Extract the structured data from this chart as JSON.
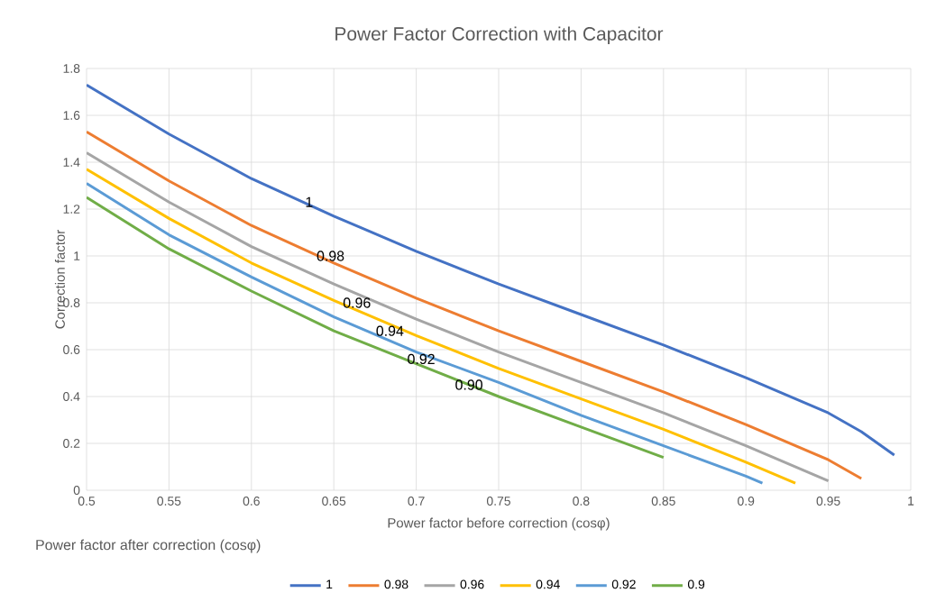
{
  "chart_data": {
    "type": "line",
    "title": "Power Factor Correction with Capacitor",
    "xlabel": "Power factor before correction  (cosφ)",
    "ylabel": "Correction  factor",
    "legend_title": "Power factor after correction (cosφ)",
    "series": [
      {
        "name": "1",
        "color": "#4472c4",
        "x": [
          0.5,
          0.55,
          0.6,
          0.65,
          0.7,
          0.75,
          0.8,
          0.85,
          0.9,
          0.95,
          0.97,
          0.99
        ],
        "values": [
          1.73,
          1.52,
          1.33,
          1.17,
          1.02,
          0.88,
          0.75,
          0.62,
          0.48,
          0.33,
          0.25,
          0.15
        ]
      },
      {
        "name": "0.98",
        "color": "#ed7d31",
        "x": [
          0.5,
          0.55,
          0.6,
          0.65,
          0.7,
          0.75,
          0.8,
          0.85,
          0.9,
          0.95,
          0.97
        ],
        "values": [
          1.53,
          1.32,
          1.13,
          0.97,
          0.82,
          0.68,
          0.55,
          0.42,
          0.28,
          0.13,
          0.05
        ]
      },
      {
        "name": "0.96",
        "color": "#a5a5a5",
        "x": [
          0.5,
          0.55,
          0.6,
          0.65,
          0.7,
          0.75,
          0.8,
          0.85,
          0.9,
          0.95
        ],
        "values": [
          1.44,
          1.23,
          1.04,
          0.88,
          0.73,
          0.59,
          0.46,
          0.33,
          0.19,
          0.04
        ]
      },
      {
        "name": "0.94",
        "color": "#ffc000",
        "x": [
          0.5,
          0.55,
          0.6,
          0.65,
          0.7,
          0.75,
          0.8,
          0.85,
          0.9,
          0.93
        ],
        "values": [
          1.37,
          1.16,
          0.97,
          0.81,
          0.66,
          0.52,
          0.39,
          0.26,
          0.12,
          0.03
        ]
      },
      {
        "name": "0.92",
        "color": "#5b9bd5",
        "x": [
          0.5,
          0.55,
          0.6,
          0.65,
          0.7,
          0.75,
          0.8,
          0.85,
          0.9,
          0.91
        ],
        "values": [
          1.31,
          1.09,
          0.91,
          0.74,
          0.59,
          0.46,
          0.32,
          0.19,
          0.06,
          0.03
        ]
      },
      {
        "name": "0.9",
        "color": "#70ad47",
        "x": [
          0.5,
          0.55,
          0.6,
          0.65,
          0.7,
          0.75,
          0.8,
          0.85
        ],
        "values": [
          1.25,
          1.03,
          0.85,
          0.68,
          0.54,
          0.4,
          0.27,
          0.14
        ]
      }
    ],
    "annotations": [
      {
        "text": "1",
        "x": 0.635,
        "y": 1.23
      },
      {
        "text": "0.98",
        "x": 0.648,
        "y": 1.0
      },
      {
        "text": "0.96",
        "x": 0.664,
        "y": 0.8
      },
      {
        "text": "0.94",
        "x": 0.684,
        "y": 0.68
      },
      {
        "text": "0.92",
        "x": 0.703,
        "y": 0.56
      },
      {
        "text": "0.90",
        "x": 0.732,
        "y": 0.45
      }
    ],
    "xlim": [
      0.5,
      1
    ],
    "ylim": [
      0,
      1.8
    ],
    "xticks": [
      0.5,
      0.55,
      0.6,
      0.65,
      0.7,
      0.75,
      0.8,
      0.85,
      0.9,
      0.95,
      1
    ],
    "yticks": [
      0,
      0.2,
      0.4,
      0.6,
      0.8,
      1,
      1.2,
      1.4,
      1.6,
      1.8
    ],
    "grid": true,
    "legend": "bottom",
    "line_style": "solid"
  }
}
